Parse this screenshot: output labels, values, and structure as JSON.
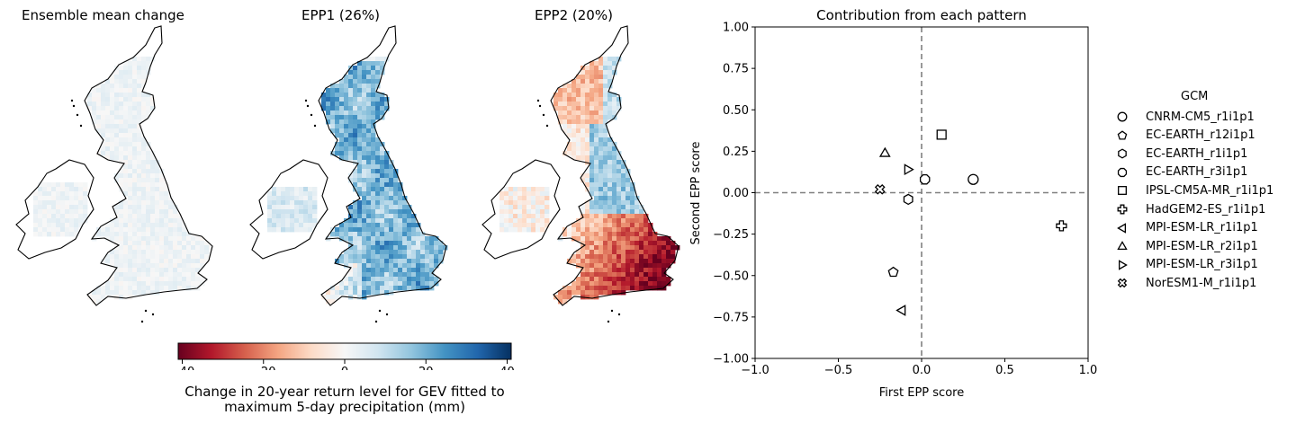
{
  "maps": [
    {
      "title": "Ensemble mean change"
    },
    {
      "title": "EPP1 (26%)"
    },
    {
      "title": "EPP2 (20%)"
    }
  ],
  "colorbar": {
    "ticks": [
      "−40",
      "−20",
      "0",
      "20",
      "40"
    ],
    "tick_values": [
      -40,
      -20,
      0,
      20,
      40
    ],
    "range": [
      -41,
      41
    ],
    "label_line1": "Change in 20-year return level for GEV fitted to",
    "label_line2": "maximum 5-day precipitation (mm)",
    "colormap": "RdBu",
    "colors": [
      "#67001f",
      "#b2182b",
      "#d6604d",
      "#f4a582",
      "#fddbc7",
      "#f7f7f7",
      "#d1e5f0",
      "#92c5de",
      "#4393c3",
      "#2166ac",
      "#053061"
    ]
  },
  "chart_data": {
    "type": "scatter",
    "title": "Contribution from each pattern",
    "xlabel": "First EPP score",
    "ylabel": "Second EPP score",
    "xlim": [
      -1.0,
      1.0
    ],
    "ylim": [
      -1.0,
      1.0
    ],
    "xticks": [
      "−1.0",
      "−0.5",
      "0.0",
      "0.5",
      "1.0"
    ],
    "xtick_values": [
      -1.0,
      -0.5,
      0.0,
      0.5,
      1.0
    ],
    "yticks": [
      "1.00",
      "0.75",
      "0.50",
      "0.25",
      "0.00",
      "−0.25",
      "−0.50",
      "−0.75",
      "−1.00"
    ],
    "ytick_values": [
      1.0,
      0.75,
      0.5,
      0.25,
      0.0,
      -0.25,
      -0.5,
      -0.75,
      -1.0
    ],
    "reference_lines": {
      "x": 0.0,
      "y": 0.0,
      "style": "dashed",
      "color": "#808080"
    },
    "grid": false,
    "legend_title": "GCM",
    "legend_position": "right",
    "series": [
      {
        "name": "CNRM-CM5_r1i1p1",
        "marker": "circle",
        "x": 0.31,
        "y": 0.08
      },
      {
        "name": "EC-EARTH_r12i1p1",
        "marker": "pentagon",
        "x": -0.17,
        "y": -0.48
      },
      {
        "name": "EC-EARTH_r1i1p1",
        "marker": "hexagon",
        "x": -0.08,
        "y": -0.04
      },
      {
        "name": "EC-EARTH_r3i1p1",
        "marker": "octagon",
        "x": 0.02,
        "y": 0.08
      },
      {
        "name": "IPSL-CM5A-MR_r1i1p1",
        "marker": "square",
        "x": 0.12,
        "y": 0.35
      },
      {
        "name": "HadGEM2-ES_r1i1p1",
        "marker": "plus",
        "x": 0.84,
        "y": -0.2
      },
      {
        "name": "MPI-ESM-LR_r1i1p1",
        "marker": "triangle-left",
        "x": -0.12,
        "y": -0.71
      },
      {
        "name": "MPI-ESM-LR_r2i1p1",
        "marker": "triangle-up",
        "x": -0.22,
        "y": 0.24
      },
      {
        "name": "MPI-ESM-LR_r3i1p1",
        "marker": "triangle-right",
        "x": -0.08,
        "y": 0.14
      },
      {
        "name": "NorESM1-M_r1i1p1",
        "marker": "x",
        "x": -0.25,
        "y": 0.02
      }
    ]
  }
}
